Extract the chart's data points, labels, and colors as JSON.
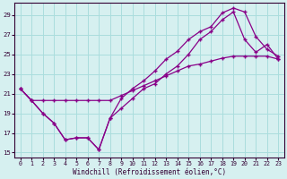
{
  "xlabel": "Windchill (Refroidissement éolien,°C)",
  "bg_color": "#d6f0f0",
  "grid_color": "#aadddd",
  "line_color": "#880088",
  "xlim_min": -0.5,
  "xlim_max": 23.5,
  "ylim_min": 14.5,
  "ylim_max": 30.2,
  "yticks": [
    15,
    17,
    19,
    21,
    23,
    25,
    27,
    29
  ],
  "xticks": [
    0,
    1,
    2,
    3,
    4,
    5,
    6,
    7,
    8,
    9,
    10,
    11,
    12,
    13,
    14,
    15,
    16,
    17,
    18,
    19,
    20,
    21,
    22,
    23
  ],
  "line1_x": [
    0,
    1,
    2,
    3,
    4,
    5,
    6,
    7,
    8,
    9,
    10,
    11,
    12,
    13,
    14,
    15,
    16,
    17,
    18,
    19,
    20,
    21,
    22,
    23
  ],
  "line1_y": [
    21.5,
    20.3,
    19.0,
    18.0,
    16.3,
    16.5,
    16.5,
    15.3,
    18.5,
    19.5,
    20.5,
    21.5,
    22.0,
    23.0,
    23.8,
    25.0,
    26.5,
    27.3,
    28.5,
    29.3,
    26.5,
    25.2,
    26.0,
    24.5
  ],
  "line2_x": [
    0,
    1,
    2,
    3,
    4,
    5,
    6,
    7,
    8,
    9,
    10,
    11,
    12,
    13,
    14,
    15,
    16,
    17,
    18,
    19,
    20,
    21,
    22,
    23
  ],
  "line2_y": [
    21.5,
    20.3,
    19.0,
    18.0,
    16.3,
    16.5,
    16.5,
    15.3,
    18.5,
    20.5,
    21.5,
    22.3,
    23.3,
    24.5,
    25.3,
    26.5,
    27.3,
    27.8,
    29.2,
    29.7,
    29.3,
    26.8,
    25.5,
    24.8
  ],
  "line3_x": [
    0,
    1,
    2,
    3,
    4,
    5,
    6,
    7,
    8,
    9,
    10,
    11,
    12,
    13,
    14,
    15,
    16,
    17,
    18,
    19,
    20,
    21,
    22,
    23
  ],
  "line3_y": [
    21.5,
    20.3,
    20.3,
    20.3,
    20.3,
    20.3,
    20.3,
    20.3,
    20.3,
    20.8,
    21.3,
    21.8,
    22.3,
    22.8,
    23.3,
    23.8,
    24.0,
    24.3,
    24.6,
    24.8,
    24.8,
    24.8,
    24.8,
    24.5
  ],
  "marker": "+",
  "markersize": 3.5,
  "linewidth": 0.9
}
